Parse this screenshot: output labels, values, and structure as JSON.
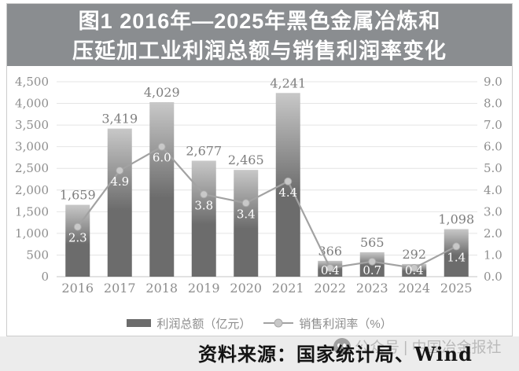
{
  "page": {
    "title_line1": "图1 2016年—2025年黑色金属冶炼和",
    "title_line2": "压延加工业利润总额与销售利润率变化",
    "source_text": "资料来源：国家统计局、Wind",
    "watermark_text": "公众号 | 中国冶金报社"
  },
  "legend": {
    "bar_label": "利润总额（亿元）",
    "line_label": "销售利润率（%）"
  },
  "chart_data": {
    "type": "bar",
    "title": "图1 2016年—2025年黑色金属冶炼和压延加工业利润总额与销售利润率变化",
    "categories": [
      "2016",
      "2017",
      "2018",
      "2019",
      "2020",
      "2021",
      "2022",
      "2023",
      "2024",
      "2025"
    ],
    "series": [
      {
        "name": "利润总额（亿元）",
        "type": "bar",
        "axis": "left",
        "values": [
          1659,
          3419,
          4029,
          2677,
          2465,
          4241,
          366,
          565,
          292,
          1098
        ],
        "labels": [
          "1,659",
          "3,419",
          "4,029",
          "2,677",
          "2,465",
          "4,241",
          "366",
          "565",
          "292",
          "1,098"
        ]
      },
      {
        "name": "销售利润率（%）",
        "type": "line",
        "axis": "right",
        "values": [
          2.3,
          4.9,
          6.0,
          3.8,
          3.4,
          4.4,
          0.4,
          0.7,
          0.4,
          1.4
        ],
        "labels": [
          "2.3",
          "4.9",
          "6.0",
          "3.8",
          "3.4",
          "4.4",
          "0.4",
          "0.7",
          "0.4",
          "1.4"
        ]
      }
    ],
    "left_axis": {
      "min": 0,
      "max": 4500,
      "step": 500,
      "ticks_top_to_bottom": [
        "4,500",
        "4,000",
        "3,500",
        "3,000",
        "2,500",
        "2,000",
        "1,500",
        "1,000",
        "500",
        "0"
      ]
    },
    "right_axis": {
      "min": 0,
      "max": 9,
      "step": 1,
      "ticks_top_to_bottom": [
        "9.0",
        "8.0",
        "7.0",
        "6.0",
        "5.0",
        "4.0",
        "3.0",
        "2.0",
        "1.0",
        "0.0"
      ]
    },
    "grid": true,
    "legend_position": "bottom",
    "style": {
      "bar_gradient_top": "#c8c8c8",
      "bar_gradient_bottom": "#6c6c6c",
      "line_color": "#a2a2a2",
      "dot_fill": "#c8c8c8",
      "dot_stroke": "#a8a8a8",
      "grid_color": "#e4e4e4",
      "baseline_color": "#c6c6c6",
      "axis_text_color": "#8e8e8e",
      "bar_label_color": "#7e7e7e",
      "point_label_color": "#ffffff",
      "title_bg": "#8a8d90",
      "title_text": "#ffffff",
      "source_strip_bg": "#ececec",
      "watermark_color": "#9a9a9a"
    }
  }
}
